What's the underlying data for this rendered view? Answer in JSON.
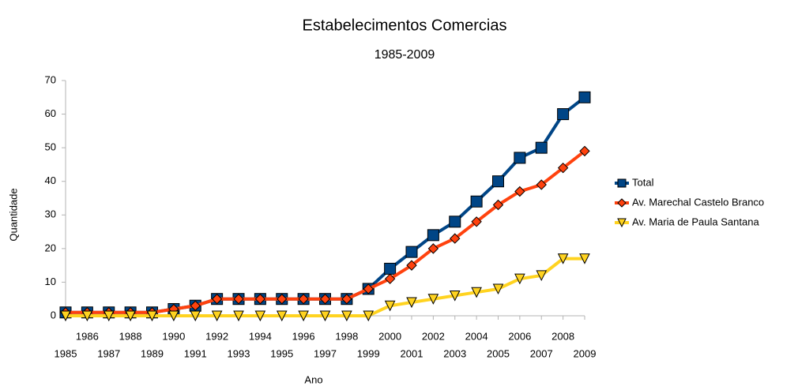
{
  "chart_data": {
    "type": "line",
    "title": "Estabelecimentos Comercias",
    "subtitle": "1985-2009",
    "x_label": "Ano",
    "y_label": "Quantidade",
    "categories": [
      1985,
      1986,
      1987,
      1988,
      1989,
      1990,
      1991,
      1992,
      1993,
      1994,
      1995,
      1996,
      1997,
      1998,
      1999,
      2000,
      2001,
      2002,
      2003,
      2004,
      2005,
      2006,
      2007,
      2008,
      2009
    ],
    "series": [
      {
        "name": "Total",
        "color": "#004586",
        "marker": "square",
        "values": [
          1,
          1,
          1,
          1,
          1,
          2,
          3,
          5,
          5,
          5,
          5,
          5,
          5,
          5,
          8,
          14,
          19,
          24,
          28,
          34,
          40,
          47,
          50,
          60,
          65
        ]
      },
      {
        "name": "Av. Marechal Castelo Branco",
        "color": "#ff420e",
        "marker": "diamond",
        "values": [
          1,
          1,
          1,
          1,
          1,
          2,
          3,
          5,
          5,
          5,
          5,
          5,
          5,
          5,
          8,
          11,
          15,
          20,
          23,
          28,
          33,
          37,
          39,
          44,
          49
        ]
      },
      {
        "name": "Av. Maria de Paula Santana",
        "color": "#ffd320",
        "marker": "triangle-down",
        "values": [
          0,
          0,
          0,
          0,
          0,
          0,
          0,
          0,
          0,
          0,
          0,
          0,
          0,
          0,
          0,
          3,
          4,
          5,
          6,
          7,
          8,
          11,
          12,
          17,
          17
        ]
      }
    ],
    "ylim": [
      0,
      70
    ],
    "yticks": [
      0,
      10,
      20,
      30,
      40,
      50,
      60,
      70
    ],
    "grid": false,
    "legend": "right"
  }
}
